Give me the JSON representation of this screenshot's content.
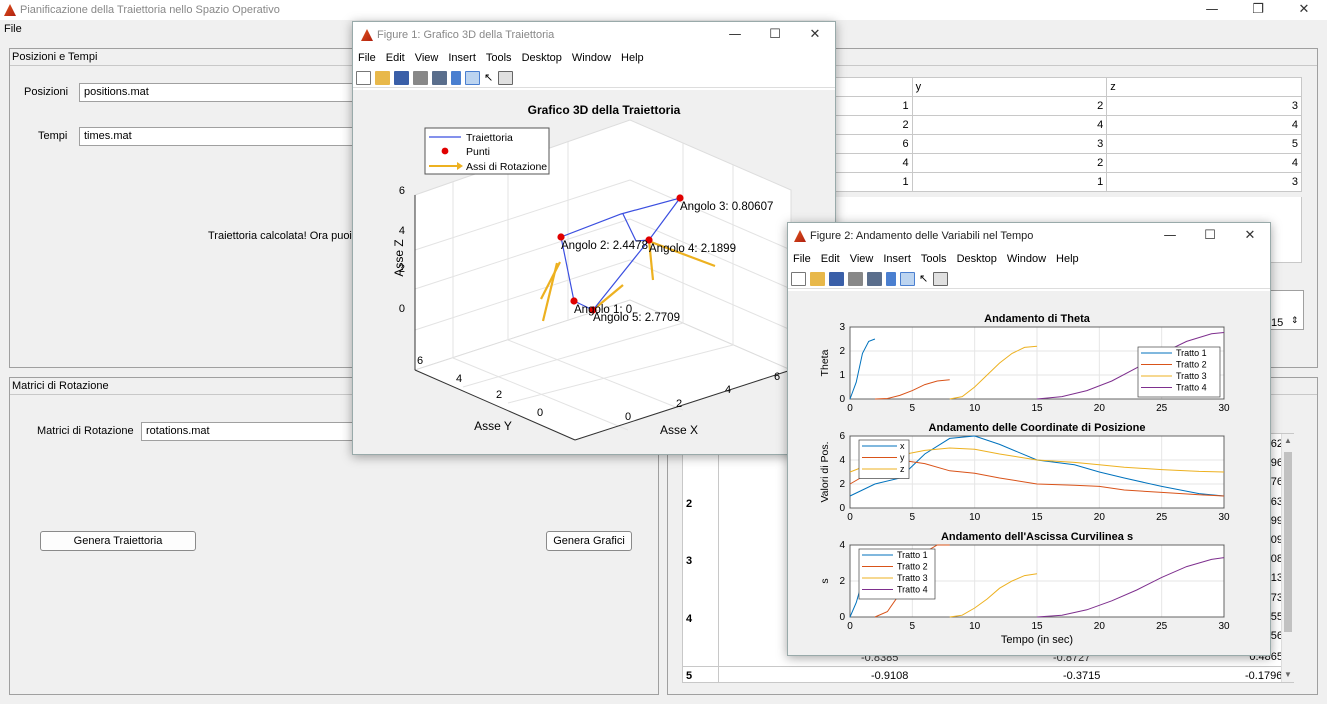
{
  "main_window": {
    "title": "Pianificazione della Traiettoria nello Spazio Operativo",
    "menu": [
      "File"
    ],
    "controls": {
      "minimize": "—",
      "maximize": "❐",
      "close": "✕"
    }
  },
  "panel_positions": {
    "title": "Posizioni e Tempi",
    "positions_label": "Posizioni",
    "positions_value": "positions.mat",
    "times_label": "Tempi",
    "times_value": "times.mat",
    "status_text": "Traiettoria calcolata! Ora puoi v"
  },
  "panel_rotations": {
    "title": "Matrici di Rotazione",
    "rotations_label": "Matrici di Rotazione",
    "rotations_value": "rotations.mat",
    "generate_trajectory_button": "Genera Traiettoria",
    "generate_plots_button": "Genera Grafici"
  },
  "positions_table": {
    "headers": [
      "y",
      "z"
    ],
    "rows": [
      {
        "x": "1",
        "y": "2",
        "z": "3"
      },
      {
        "x": "2",
        "y": "4",
        "z": "4"
      },
      {
        "x": "6",
        "y": "3",
        "z": "5"
      },
      {
        "x": "4",
        "y": "2",
        "z": "4"
      },
      {
        "x": "1",
        "y": "1",
        "z": "3"
      }
    ]
  },
  "spinner_value": "15",
  "rotation_table": {
    "right_values": [
      "362",
      "596",
      "776",
      "263",
      "099",
      "509",
      "008",
      "313",
      "073",
      "255",
      "356",
      "0.4865"
    ],
    "row_labels": [
      "2",
      "3",
      "4",
      "5"
    ],
    "partial_row": [
      "-0.8385",
      "-0.8727"
    ],
    "last_row": {
      "label": "5",
      "c1": "-0.9108",
      "c2": "-0.3715",
      "c3": "-0.1796"
    }
  },
  "figure1": {
    "title": "Figure 1: Grafico 3D della Traiettoria",
    "menu": [
      "File",
      "Edit",
      "View",
      "Insert",
      "Tools",
      "Desktop",
      "Window",
      "Help"
    ],
    "plot_title": "Grafico 3D della Traiettoria",
    "legend": [
      "Traiettoria",
      "Punti",
      "Assi di Rotazione"
    ],
    "xlabel": "Asse X",
    "ylabel": "Asse Y",
    "zlabel": "Asse Z",
    "z_ticks": [
      "0",
      "2",
      "4",
      "6"
    ],
    "y_ticks": [
      "0",
      "2",
      "4",
      "6"
    ],
    "x_ticks": [
      "0",
      "2",
      "4",
      "6"
    ],
    "annotations": [
      "Angolo 1: 0",
      "Angolo 2: 2.4478",
      "Angolo 3: 0.80607",
      "Angolo 4: 2.1899",
      "Angolo 5: 2.7709"
    ],
    "colors": {
      "trajectory": "#3b4fe0",
      "points": "#e00000",
      "axes": "#edb120"
    }
  },
  "figure2": {
    "title": "Figure 2: Andamento delle Variabili nel Tempo",
    "menu": [
      "File",
      "Edit",
      "View",
      "Insert",
      "Tools",
      "Desktop",
      "Window",
      "Help"
    ],
    "xlabel": "Tempo (in sec)",
    "colors": {
      "c1": "#0072bd",
      "c2": "#d95319",
      "c3": "#edb120",
      "c4": "#7e2f8e"
    }
  },
  "chart_data": [
    {
      "type": "line",
      "title": "Andamento di Theta",
      "xlabel": "",
      "ylabel": "Theta",
      "xlim": [
        0,
        30
      ],
      "ylim": [
        0,
        3
      ],
      "xticks": [
        "0",
        "5",
        "10",
        "15",
        "20",
        "25",
        "30"
      ],
      "yticks": [
        "0",
        "1",
        "2",
        "3"
      ],
      "legend_position": "top-right",
      "series": [
        {
          "name": "Tratto 1",
          "x": [
            0,
            0.5,
            1,
            1.5,
            2
          ],
          "y": [
            0,
            0.7,
            1.9,
            2.4,
            2.5
          ]
        },
        {
          "name": "Tratto 2",
          "x": [
            2,
            3,
            4,
            5,
            6,
            7,
            8
          ],
          "y": [
            0,
            0.02,
            0.15,
            0.35,
            0.6,
            0.75,
            0.8
          ]
        },
        {
          "name": "Tratto 3",
          "x": [
            8,
            9,
            10,
            11,
            12,
            13,
            14,
            15
          ],
          "y": [
            0,
            0.1,
            0.5,
            1.0,
            1.5,
            1.9,
            2.15,
            2.2
          ]
        },
        {
          "name": "Tratto 4",
          "x": [
            15,
            17,
            19,
            21,
            23,
            25,
            27,
            29,
            30
          ],
          "y": [
            0,
            0.1,
            0.35,
            0.75,
            1.3,
            1.9,
            2.4,
            2.72,
            2.77
          ]
        }
      ]
    },
    {
      "type": "line",
      "title": "Andamento delle Coordinate di Posizione",
      "xlabel": "",
      "ylabel": "Valori di Pos.",
      "xlim": [
        0,
        30
      ],
      "ylim": [
        0,
        6
      ],
      "xticks": [
        "0",
        "5",
        "10",
        "15",
        "20",
        "25",
        "30"
      ],
      "yticks": [
        "0",
        "2",
        "4",
        "6"
      ],
      "legend_position": "top-left",
      "series": [
        {
          "name": "x",
          "x": [
            0,
            2,
            4,
            6,
            8,
            10,
            12,
            15,
            18,
            20,
            22,
            25,
            28,
            30
          ],
          "y": [
            1,
            2,
            2.5,
            4.5,
            5.8,
            6.0,
            5.3,
            4.0,
            3.6,
            3.0,
            2.5,
            1.8,
            1.2,
            1.0
          ]
        },
        {
          "name": "y",
          "x": [
            0,
            2,
            4,
            6,
            8,
            10,
            12,
            15,
            18,
            20,
            22,
            25,
            28,
            30
          ],
          "y": [
            2,
            3.2,
            4.0,
            3.7,
            3.1,
            2.9,
            2.5,
            2.0,
            1.9,
            1.8,
            1.5,
            1.3,
            1.1,
            1.0
          ]
        },
        {
          "name": "z",
          "x": [
            0,
            2,
            4,
            6,
            8,
            10,
            12,
            15,
            18,
            20,
            22,
            25,
            28,
            30
          ],
          "y": [
            3,
            3.8,
            4.4,
            4.8,
            5.0,
            4.9,
            4.5,
            4.0,
            3.8,
            3.6,
            3.4,
            3.2,
            3.05,
            3.0
          ]
        }
      ]
    },
    {
      "type": "line",
      "title": "Andamento dell'Ascissa Curvilinea s",
      "xlabel": "Tempo (in sec)",
      "ylabel": "s",
      "xlim": [
        0,
        30
      ],
      "ylim": [
        0,
        4
      ],
      "xticks": [
        "0",
        "5",
        "10",
        "15",
        "20",
        "25",
        "30"
      ],
      "yticks": [
        "0",
        "2",
        "4"
      ],
      "legend_position": "top-left",
      "series": [
        {
          "name": "Tratto 1",
          "x": [
            0,
            0.5,
            1,
            1.5,
            2
          ],
          "y": [
            0,
            0.8,
            2.0,
            2.6,
            2.8
          ]
        },
        {
          "name": "Tratto 2",
          "x": [
            2,
            3,
            4,
            5,
            6,
            7,
            8
          ],
          "y": [
            0,
            0.3,
            1.3,
            2.6,
            3.6,
            4.2,
            4.3
          ]
        },
        {
          "name": "Tratto 3",
          "x": [
            8,
            9,
            10,
            11,
            12,
            13,
            14,
            15
          ],
          "y": [
            0,
            0.1,
            0.5,
            1.0,
            1.6,
            2.0,
            2.3,
            2.4
          ]
        },
        {
          "name": "Tratto 4",
          "x": [
            15,
            17,
            19,
            21,
            23,
            25,
            27,
            29,
            30
          ],
          "y": [
            0,
            0.1,
            0.4,
            0.9,
            1.5,
            2.2,
            2.8,
            3.2,
            3.3
          ]
        }
      ]
    }
  ]
}
